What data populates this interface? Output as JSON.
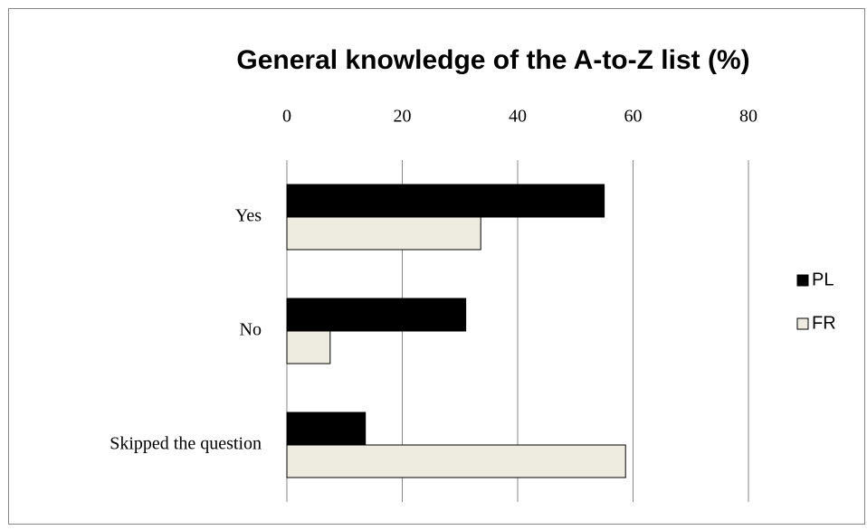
{
  "chart_data": {
    "type": "hbar",
    "title": "General knowledge of the A-to-Z list (%)",
    "categories": [
      "Yes",
      "No",
      "Skipped the question"
    ],
    "series": [
      {
        "name": "PL",
        "color": "#000000",
        "values": [
          55,
          31,
          13.6
        ]
      },
      {
        "name": "FR",
        "color": "#eeece1",
        "values": [
          33.6,
          7.5,
          58.7
        ]
      }
    ],
    "xlim": [
      0,
      80
    ],
    "xticks": [
      0,
      20,
      40,
      60,
      80
    ],
    "grid": true,
    "legend": "right"
  }
}
